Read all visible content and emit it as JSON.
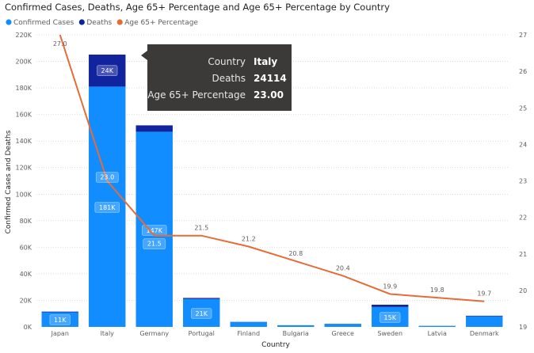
{
  "chart_data": {
    "type": "bar",
    "title": "Confirmed Cases, Deaths, Age 65+ Percentage and Age 65+ Percentage by Country",
    "xlabel": "Country",
    "ylabel": "Confirmed Cases and Deaths",
    "categories": [
      "Japan",
      "Italy",
      "Germany",
      "Portugal",
      "Finland",
      "Bulgaria",
      "Greece",
      "Sweden",
      "Latvia",
      "Denmark"
    ],
    "series": [
      {
        "name": "Confirmed Cases",
        "values": [
          11000,
          181000,
          147000,
          21000,
          3700,
          1200,
          2200,
          15000,
          800,
          8000
        ],
        "color": "#118dff"
      },
      {
        "name": "Deaths",
        "values": [
          500,
          24114,
          4800,
          800,
          100,
          50,
          120,
          1700,
          15,
          400
        ],
        "color": "#12239e"
      },
      {
        "name": "Age  65+ Percentage",
        "values": [
          27.0,
          23.0,
          21.5,
          21.5,
          21.2,
          20.8,
          20.4,
          19.9,
          19.8,
          19.7
        ],
        "color": "#e66c37"
      }
    ],
    "legend": [
      "Confirmed Cases",
      "Deaths",
      "Age  65+ Percentage"
    ],
    "legend_position": "top-left",
    "ylim": [
      0,
      220000
    ],
    "y_ticks": [
      "0K",
      "20K",
      "40K",
      "60K",
      "80K",
      "100K",
      "120K",
      "140K",
      "160K",
      "180K",
      "200K",
      "220K"
    ],
    "y2lim": [
      19,
      27
    ],
    "y2_ticks": [
      "19",
      "20",
      "21",
      "22",
      "23",
      "24",
      "25",
      "26",
      "27"
    ],
    "bar_labels": [
      "11K",
      "24K",
      "181K",
      "147K",
      "21K",
      "15K"
    ],
    "line_labels": [
      "27.0",
      "23.0",
      "21.5",
      "21.5",
      "21.2",
      "20.8",
      "20.4",
      "19.9",
      "19.8",
      "19.7"
    ],
    "grid": true,
    "tooltip": {
      "rows": [
        {
          "key": "Country",
          "value": "Italy"
        },
        {
          "key": "Deaths",
          "value": "24114"
        },
        {
          "key": "Age 65+ Percentage",
          "value": "23.00"
        }
      ]
    }
  }
}
